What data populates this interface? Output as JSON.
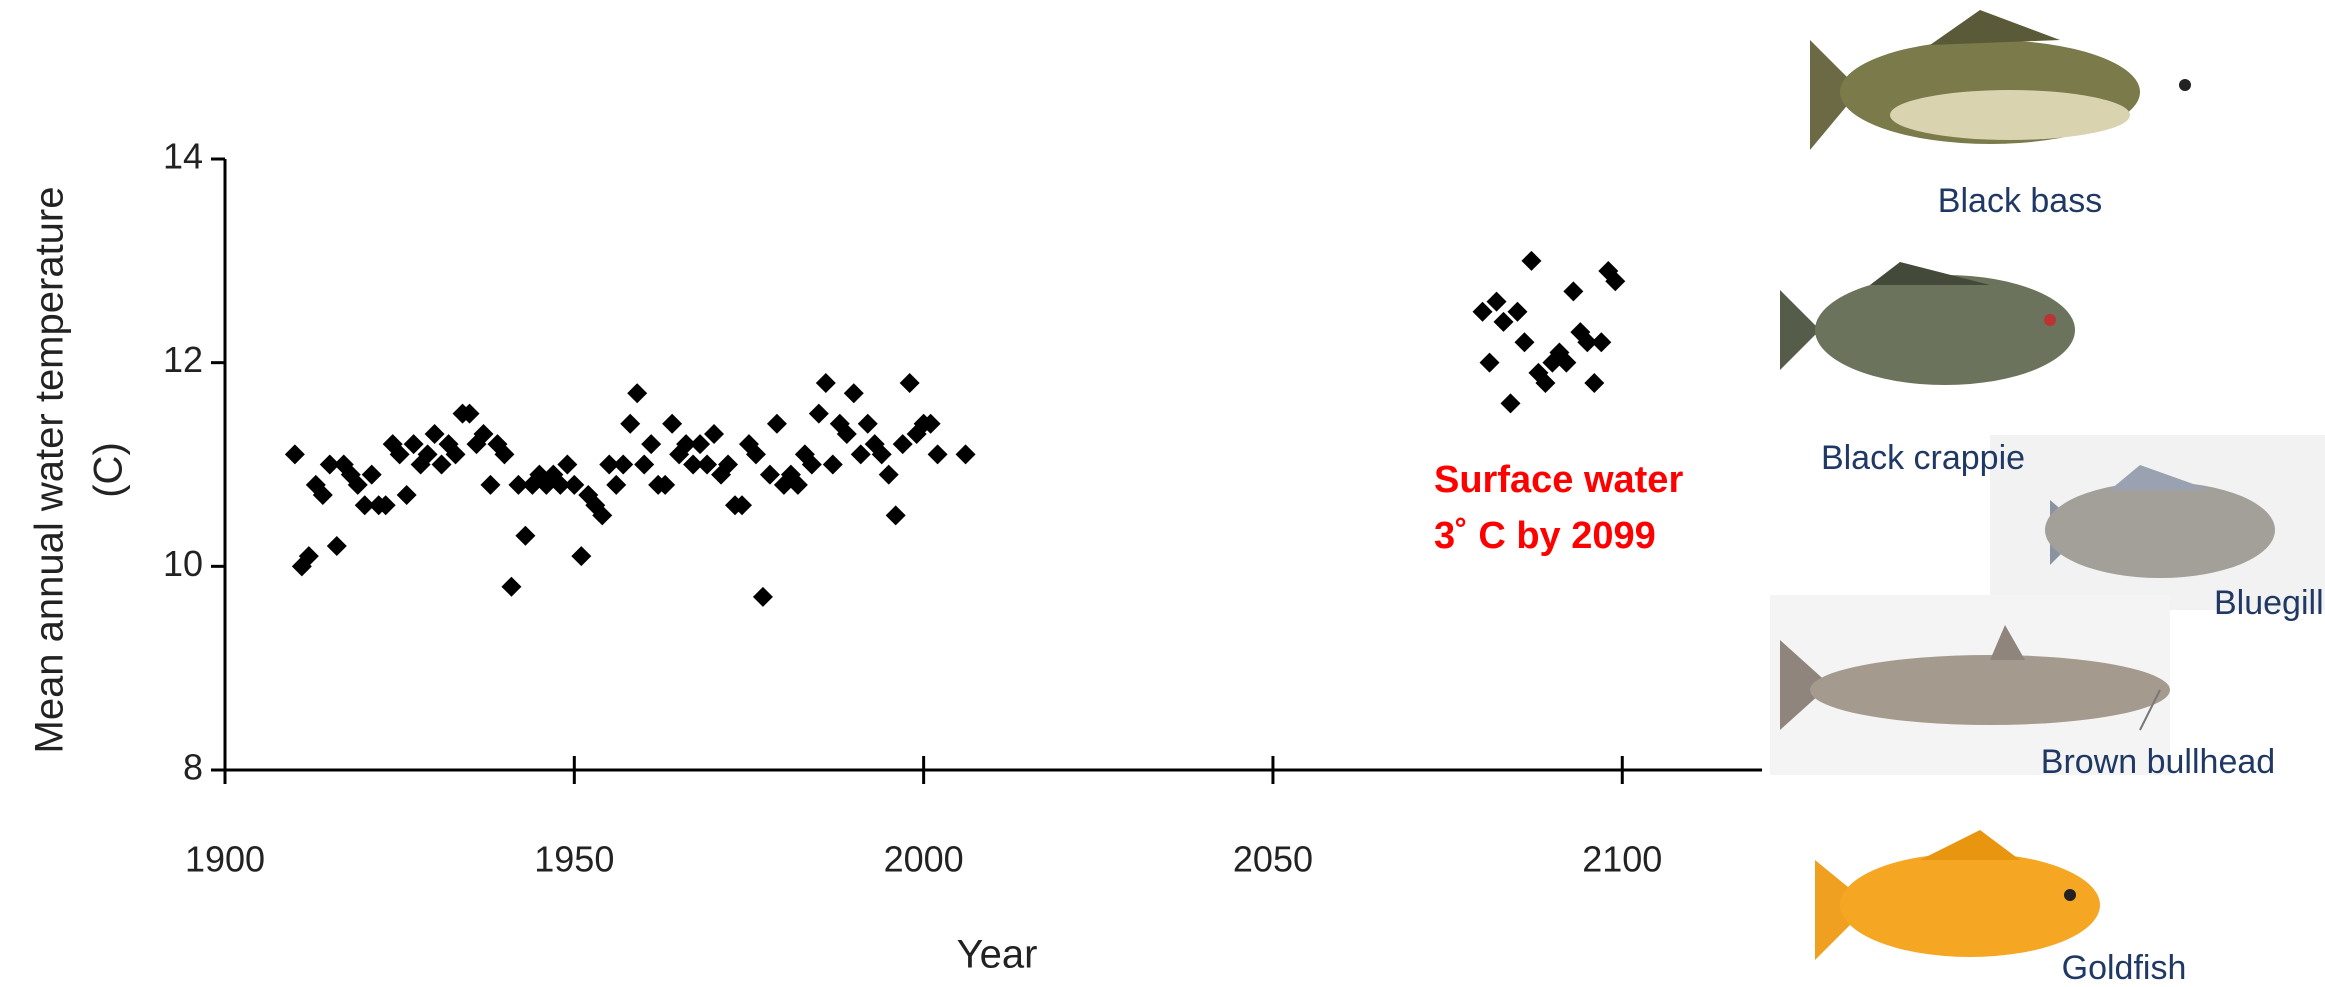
{
  "chart_data": {
    "type": "scatter",
    "x_label": "Year",
    "y_label": [
      "Mean annual water temperature",
      "(C)"
    ],
    "annotation": [
      "Surface water",
      "3˚ C by 2099"
    ],
    "color": "#000000",
    "xlim": [
      1900,
      2120
    ],
    "xticks": [
      1900,
      1950,
      2000,
      2050,
      2100
    ],
    "ylim": [
      8,
      14
    ],
    "yticks": [
      8,
      10,
      12,
      14
    ],
    "x": [
      1910,
      1911,
      1912,
      1913,
      1914,
      1915,
      1916,
      1917,
      1918,
      1919,
      1920,
      1921,
      1922,
      1923,
      1924,
      1925,
      1926,
      1927,
      1928,
      1929,
      1930,
      1931,
      1932,
      1933,
      1934,
      1935,
      1936,
      1937,
      1938,
      1939,
      1940,
      1941,
      1942,
      1943,
      1944,
      1945,
      1946,
      1947,
      1948,
      1949,
      1950,
      1951,
      1952,
      1953,
      1954,
      1955,
      1956,
      1957,
      1958,
      1959,
      1960,
      1961,
      1962,
      1963,
      1964,
      1965,
      1966,
      1967,
      1968,
      1969,
      1970,
      1971,
      1972,
      1973,
      1974,
      1975,
      1976,
      1977,
      1978,
      1979,
      1980,
      1981,
      1982,
      1983,
      1984,
      1985,
      1986,
      1987,
      1988,
      1989,
      1990,
      1991,
      1992,
      1993,
      1994,
      1995,
      1996,
      1997,
      1998,
      1999,
      2000,
      2001,
      2002,
      2006,
      2080,
      2081,
      2082,
      2083,
      2084,
      2085,
      2086,
      2087,
      2088,
      2089,
      2090,
      2091,
      2092,
      2093,
      2094,
      2095,
      2096,
      2097,
      2098,
      2099
    ],
    "values": [
      11.1,
      10.0,
      10.1,
      10.8,
      10.7,
      11.0,
      10.2,
      11.0,
      10.9,
      10.8,
      10.6,
      10.9,
      10.6,
      10.6,
      11.2,
      11.1,
      10.7,
      11.2,
      11.0,
      11.1,
      11.3,
      11.0,
      11.2,
      11.1,
      11.5,
      11.5,
      11.2,
      11.3,
      10.8,
      11.2,
      11.1,
      9.8,
      10.8,
      10.3,
      10.8,
      10.9,
      10.8,
      10.9,
      10.8,
      11.0,
      10.8,
      10.1,
      10.7,
      10.6,
      10.5,
      11.0,
      10.8,
      11.0,
      11.4,
      11.7,
      11.0,
      11.2,
      10.8,
      10.8,
      11.4,
      11.1,
      11.2,
      11.0,
      11.2,
      11.0,
      11.3,
      10.9,
      11.0,
      10.6,
      10.6,
      11.2,
      11.1,
      9.7,
      10.9,
      11.4,
      10.8,
      10.9,
      10.8,
      11.1,
      11.0,
      11.5,
      11.8,
      11.0,
      11.4,
      11.3,
      11.7,
      11.1,
      11.4,
      11.2,
      11.1,
      10.9,
      10.5,
      11.2,
      11.8,
      11.3,
      11.4,
      11.4,
      11.1,
      11.1,
      12.5,
      12.0,
      12.6,
      12.4,
      11.6,
      12.5,
      12.2,
      13.0,
      11.9,
      11.8,
      12.0,
      12.1,
      12.0,
      12.7,
      12.3,
      12.2,
      11.8,
      12.2,
      12.9,
      12.8
    ]
  },
  "fish_labels": [
    "Black bass",
    "Black crappie",
    "Bluegill",
    "Brown bullhead",
    "Goldfish"
  ]
}
